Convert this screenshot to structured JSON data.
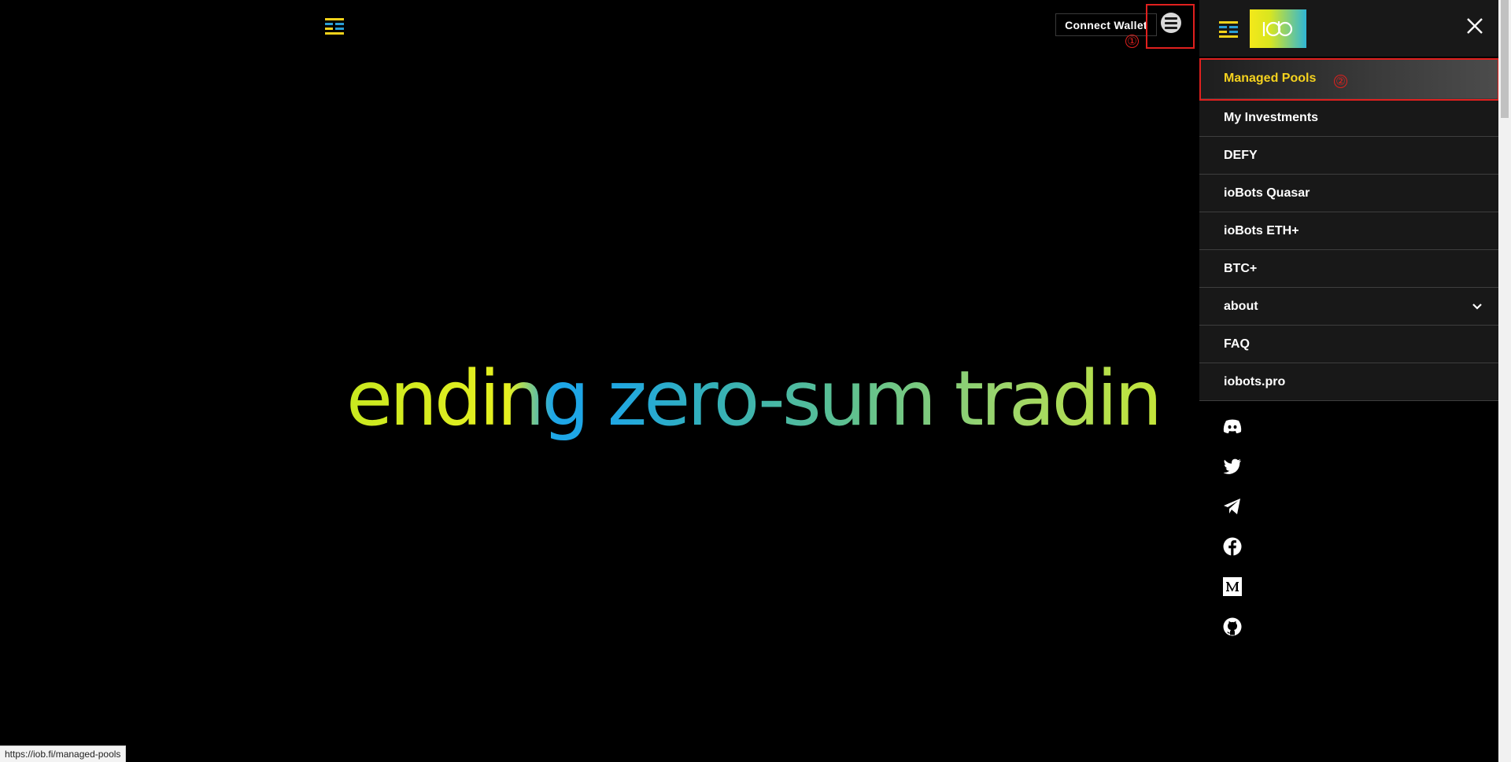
{
  "header": {
    "logo_icon": "iob-bars-logo-icon",
    "connect_wallet_label": "Connect Wallet",
    "menu_icon": "hamburger-menu-icon"
  },
  "hero": {
    "headline": "ending zero-sum trading"
  },
  "side_menu": {
    "brand_icon": "iob-gradient-brand-icon",
    "close_icon": "close-icon",
    "items": [
      {
        "label": "Managed Pools",
        "active": true
      },
      {
        "label": "My Investments"
      },
      {
        "label": "DEFY"
      },
      {
        "label": "ioBots Quasar"
      },
      {
        "label": "ioBots ETH+"
      },
      {
        "label": "BTC+"
      },
      {
        "label": "about",
        "has_submenu": true
      },
      {
        "label": "FAQ"
      },
      {
        "label": "iobots.pro"
      }
    ],
    "socials": [
      "discord-icon",
      "twitter-icon",
      "telegram-icon",
      "facebook-icon",
      "medium-icon",
      "github-icon"
    ]
  },
  "annotations": {
    "marker_1": "①",
    "marker_2": "②"
  },
  "status_bar": {
    "url": "https://iob.fi/managed-pools"
  },
  "colors": {
    "background": "#000000",
    "panel": "#181818",
    "active_item_text": "#f5d21e",
    "annotation": "#e0201e"
  }
}
